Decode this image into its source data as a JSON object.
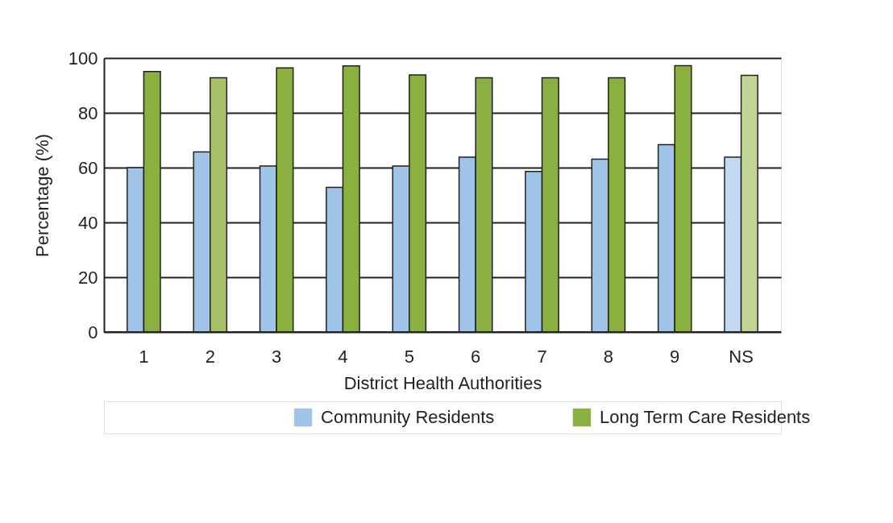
{
  "chart_data": {
    "type": "bar",
    "xlabel": "District Health Authorities",
    "ylabel": "Percentage (%)",
    "categories": [
      "1",
      "2",
      "3",
      "4",
      "5",
      "6",
      "7",
      "8",
      "9",
      "NS"
    ],
    "series": [
      {
        "name": "Community Residents",
        "color": "#a0c4e8",
        "colors": [
          "#a0c4e8",
          "#a0c4e8",
          "#a0c4e8",
          "#a0c4e8",
          "#a0c4e8",
          "#a0c4e8",
          "#a0c4e8",
          "#a0c4e8",
          "#a0c4e8",
          "#c3d9ef"
        ],
        "values": [
          60,
          65.7,
          60.6,
          52.8,
          60.6,
          63.8,
          58.6,
          63.1,
          68.4,
          63.8
        ]
      },
      {
        "name": "Long Term Care Residents",
        "color": "#8ab13f",
        "colors": [
          "#8ab13f",
          "#a7c06a",
          "#8ab13f",
          "#8ab13f",
          "#8ab13f",
          "#8ab13f",
          "#8ab13f",
          "#8ab13f",
          "#8ab13f",
          "#c1d496"
        ],
        "values": [
          95.1,
          92.8,
          96.4,
          97.1,
          93.8,
          92.8,
          92.8,
          92.8,
          97.2,
          93.7
        ]
      }
    ],
    "ylim": [
      0,
      100
    ],
    "yticks": [
      0,
      20,
      40,
      60,
      80,
      100
    ],
    "grid": "y",
    "legend": "bottom"
  }
}
